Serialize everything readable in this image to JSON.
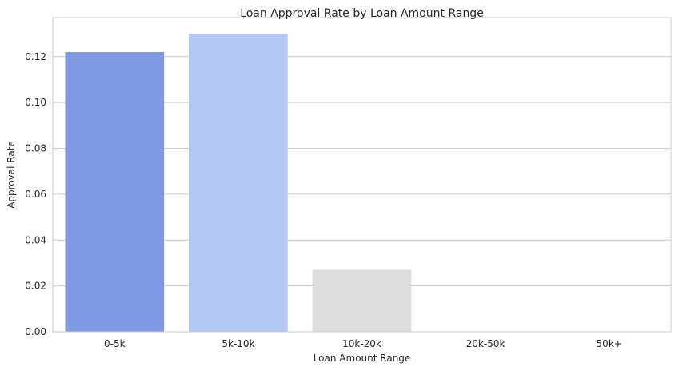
{
  "chart_data": {
    "type": "bar",
    "title": "Loan Approval Rate by Loan Amount Range",
    "xlabel": "Loan Amount Range",
    "ylabel": "Approval Rate",
    "categories": [
      "0-5k",
      "5k-10k",
      "10k-20k",
      "20k-50k",
      "50k+"
    ],
    "values": [
      0.122,
      0.13,
      0.027,
      0.0,
      0.0
    ],
    "colors": [
      "#7f99e3",
      "#b3c9f4",
      "#dddddd",
      "#f2c2a8",
      "#e88a6c"
    ],
    "ylim": [
      0,
      0.137
    ],
    "yticks": [
      0.0,
      0.02,
      0.04,
      0.06,
      0.08,
      0.1,
      0.12
    ],
    "ytick_labels": [
      "0.00",
      "0.02",
      "0.04",
      "0.06",
      "0.08",
      "0.10",
      "0.12"
    ],
    "grid": "horizontal",
    "style": {
      "background": "#ffffff",
      "grid_color": "#cccccc",
      "frame_color": "#cccccc"
    }
  }
}
